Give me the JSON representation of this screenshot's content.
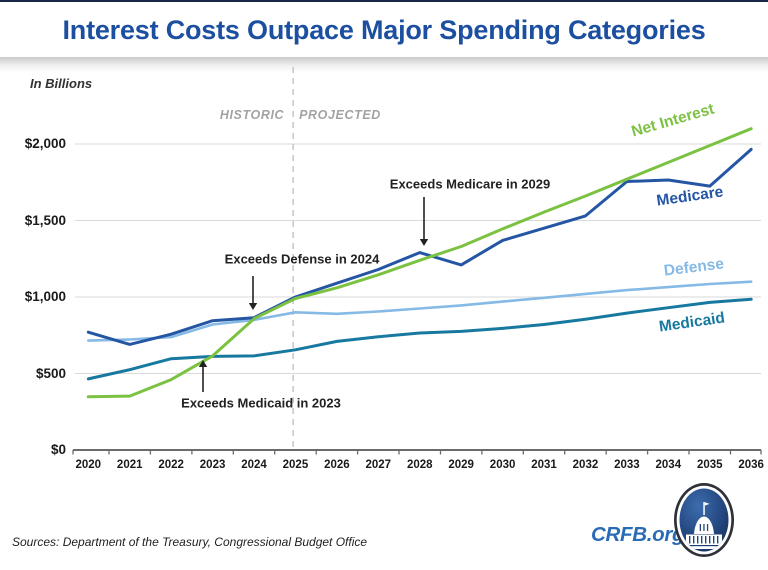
{
  "page": {
    "title": "Interest Costs Outpace Major Spending Categories",
    "title_color": "#1d4fa0",
    "top_border_color": "#1a2744"
  },
  "chart": {
    "historic_label": "HISTORIC",
    "projected_label": "PROJECTED",
    "divider_year": 2025
  },
  "chart_data": {
    "type": "line",
    "title": "Interest Costs Outpace Major Spending Categories",
    "ylabel": "In Billions",
    "x": [
      2020,
      2021,
      2022,
      2023,
      2024,
      2025,
      2026,
      2027,
      2028,
      2029,
      2030,
      2031,
      2032,
      2033,
      2034,
      2035,
      2036
    ],
    "ylim": [
      0,
      2000
    ],
    "yticks": [
      0,
      500,
      1000,
      1500,
      2000
    ],
    "ytick_labels": [
      "$0",
      "$500",
      "$1,000",
      "$1,500",
      "$2,000"
    ],
    "grid": true,
    "legend": "inline-labels-right",
    "series": [
      {
        "name": "Net Interest",
        "color": "#7cc242",
        "values": [
          348,
          352,
          460,
          615,
          858,
          990,
          1060,
          1145,
          1240,
          1330,
          1445,
          1555,
          1660,
          1770,
          1880,
          1990,
          2100
        ]
      },
      {
        "name": "Medicare",
        "color": "#2456a4",
        "values": [
          770,
          690,
          757,
          845,
          865,
          1000,
          1090,
          1180,
          1290,
          1210,
          1370,
          1450,
          1530,
          1755,
          1765,
          1725,
          1965
        ]
      },
      {
        "name": "Defense",
        "color": "#85bae6",
        "values": [
          715,
          722,
          738,
          820,
          850,
          900,
          890,
          905,
          925,
          945,
          970,
          995,
          1020,
          1045,
          1065,
          1085,
          1100
        ]
      },
      {
        "name": "Medicaid",
        "color": "#17799f",
        "values": [
          465,
          525,
          597,
          612,
          615,
          655,
          710,
          740,
          765,
          775,
          795,
          820,
          855,
          895,
          930,
          965,
          985
        ]
      }
    ],
    "annotations": [
      {
        "text": "Exceeds Medicare in 2029"
      },
      {
        "text": "Exceeds Defense in 2024"
      },
      {
        "text": "Exceeds Medicaid in 2023"
      }
    ]
  },
  "footer": {
    "sources": "Sources: Department of the Treasury, Congressional Budget Office",
    "brand": "CRFB.org",
    "brand_color": "#2a6bb5"
  }
}
